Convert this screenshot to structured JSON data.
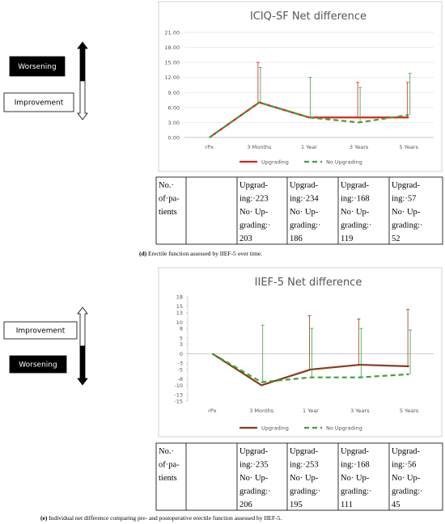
{
  "chart_data": [
    {
      "type": "line",
      "title": "ICIQ-SF Net difference",
      "categories": [
        "rPx",
        "3 Months",
        "1 Year",
        "3 Years",
        "5 Years"
      ],
      "series": [
        {
          "name": "Upgrading",
          "color": "#e0201b",
          "dash": false,
          "values": [
            0,
            7,
            4,
            4,
            4
          ],
          "errors": [
            null,
            8,
            null,
            7,
            7
          ]
        },
        {
          "name": "No Upgrading",
          "color": "#3aa33a",
          "dash": true,
          "values": [
            0,
            7,
            4,
            3,
            4.5
          ],
          "errors": [
            null,
            7,
            8,
            7,
            8.3
          ]
        }
      ],
      "ylim": [
        0,
        21
      ],
      "yticks": [
        {
          "value": 0,
          "label": "0.00"
        },
        {
          "value": 3,
          "label": "3.00"
        },
        {
          "value": 6,
          "label": "6.00"
        },
        {
          "value": 9,
          "label": "9.00"
        },
        {
          "value": 12,
          "label": "12.00"
        },
        {
          "value": 15,
          "label": "15.00"
        },
        {
          "value": 18,
          "label": "18.00"
        },
        {
          "value": 21,
          "label": "21.00"
        }
      ],
      "grid": true
    },
    {
      "type": "line",
      "title": "IIEF-5 Net difference",
      "categories": [
        "rPx",
        "3 Months",
        "1 Year",
        "3 Years",
        "5 Years"
      ],
      "series": [
        {
          "name": "Upgrading",
          "color": "#8b3a1a",
          "dash": false,
          "values": [
            0,
            -10,
            -5,
            -3.5,
            -4
          ],
          "errors": [
            null,
            null,
            17,
            14.5,
            18
          ]
        },
        {
          "name": "No Upgrading",
          "color": "#3aa33a",
          "dash": true,
          "values": [
            0,
            -9,
            -7.5,
            -7.5,
            -6.5
          ],
          "errors": [
            null,
            18,
            15.5,
            15.5,
            14
          ]
        }
      ],
      "ylim": [
        -15,
        18
      ],
      "yticks": [
        -15,
        -13,
        -10,
        -8,
        -5,
        -3,
        0,
        3,
        5,
        8,
        10,
        13,
        15,
        18
      ],
      "grid": false
    }
  ],
  "side_labels": [
    {
      "top": "Worsening",
      "bottom": "Improvement"
    },
    {
      "top": "Improvement",
      "bottom": "Worsening"
    }
  ],
  "tables": [
    {
      "rows": [
        [
          [
            "No.·",
            "of·pa-",
            "tients"
          ],
          [],
          [
            "Upgrad-",
            "ing:·223",
            "No·  Up-",
            "grading:·",
            "203"
          ],
          [
            "Upgrad-",
            "ing:·234",
            "No·  Up-",
            "grading:·",
            "186"
          ],
          [
            "Upgrad-",
            "ing:·168",
            "No·  Up-",
            "grading:·",
            "119"
          ],
          [
            "Upgrad-",
            "ing:·57",
            "No·  Up-",
            "grading:·",
            "52"
          ]
        ]
      ]
    },
    {
      "rows": [
        [
          [
            "No.·",
            "of·pa-",
            "tients"
          ],
          [],
          [
            "Upgrad-",
            "ing:·235",
            "No·  Up-",
            "grading:·",
            "206"
          ],
          [
            "Upgrad-",
            "ing:·253",
            "No·  Up-",
            "grading:·",
            "195"
          ],
          [
            "Upgrad-",
            "ing:·168",
            "No·  Up-",
            "grading:·",
            "111"
          ],
          [
            "Upgrad-",
            "ing:·56",
            "No·  Up-",
            "grading:·",
            "45"
          ]
        ]
      ]
    }
  ],
  "captions": [
    {
      "label": "(d)",
      "text": " Erectile function assessed by IIEF-5 over time."
    },
    {
      "label": "(e)",
      "text": " Individual net difference comparing pre- and postoperative erectile function assessed by IIEF-5."
    }
  ]
}
